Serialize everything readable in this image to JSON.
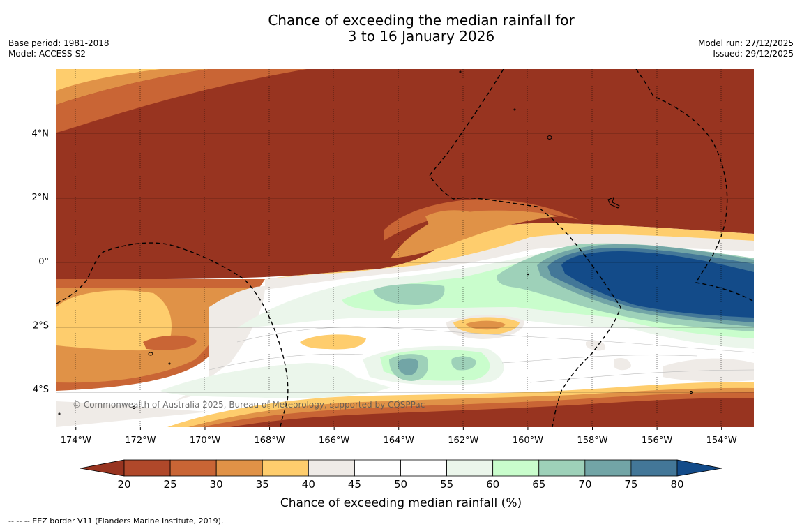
{
  "header": {
    "title_line1": "Chance of exceeding the median rainfall for",
    "title_line2": "3 to 16 January 2026",
    "base_period": "Base period: 1981-2018",
    "model": "Model: ACCESS-S2",
    "model_run": "Model run: 27/12/2025",
    "issued": "Issued: 29/12/2025"
  },
  "copyright": "© Commonwealth of Australia 2025, Bureau of Meteorology, supported by COSPPac",
  "footnote": "--  --  -- EEZ border V11 (Flanders Marine Institute, 2019).",
  "chart_data": {
    "type": "heatmap",
    "title": "Chance of exceeding the median rainfall for 3 to 16 January 2026",
    "x_ticks": [
      {
        "label": "174°W",
        "value": -174
      },
      {
        "label": "172°W",
        "value": -172
      },
      {
        "label": "170°W",
        "value": -170
      },
      {
        "label": "168°W",
        "value": -168
      },
      {
        "label": "166°W",
        "value": -166
      },
      {
        "label": "164°W",
        "value": -164
      },
      {
        "label": "162°W",
        "value": -162
      },
      {
        "label": "160°W",
        "value": -160
      },
      {
        "label": "158°W",
        "value": -158
      },
      {
        "label": "156°W",
        "value": -156
      },
      {
        "label": "154°W",
        "value": -154
      }
    ],
    "y_ticks": [
      {
        "label": "4°N",
        "value": 4
      },
      {
        "label": "2°N",
        "value": 2
      },
      {
        "label": "0°",
        "value": 0
      },
      {
        "label": "2°S",
        "value": -2
      },
      {
        "label": "4°S",
        "value": -4
      }
    ],
    "xlim": [
      -174.6,
      -153.0
    ],
    "ylim": [
      -5.2,
      6.0
    ],
    "colorbar": {
      "label": "Chance of exceeding median rainfall (%)",
      "ticks": [
        "20",
        "25",
        "30",
        "35",
        "40",
        "45",
        "50",
        "55",
        "60",
        "65",
        "70",
        "75",
        "80"
      ],
      "bin_colors": [
        "#b0482a",
        "#c96535",
        "#e09247",
        "#fecd6d",
        "#efebe7",
        "#ffffff",
        "#ffffff",
        "#ebf6eb",
        "#c9fdcc",
        "#9ed1b9",
        "#72a5a6",
        "#437798"
      ],
      "under_color": "#983420",
      "over_color": "#134b89"
    },
    "regions": [
      {
        "name": "very-low-north",
        "value": 18,
        "color": "#983420"
      },
      {
        "name": "band-25-30",
        "value": 27,
        "color": "#c96535"
      },
      {
        "name": "band-30-35",
        "value": 32,
        "color": "#e09247"
      },
      {
        "name": "band-35-40",
        "value": 37,
        "color": "#fecd6d"
      },
      {
        "name": "band-40-45",
        "value": 42,
        "color": "#efebe7"
      },
      {
        "name": "band-55-60",
        "value": 57,
        "color": "#ebf6eb"
      },
      {
        "name": "band-60-65",
        "value": 62,
        "color": "#c9fdcc"
      },
      {
        "name": "band-65-70",
        "value": 67,
        "color": "#9ed1b9"
      },
      {
        "name": "band-70-75",
        "value": 72,
        "color": "#72a5a6"
      },
      {
        "name": "band-75-80",
        "value": 77,
        "color": "#437798"
      },
      {
        "name": "very-high-east",
        "value": 85,
        "color": "#134b89"
      }
    ]
  }
}
